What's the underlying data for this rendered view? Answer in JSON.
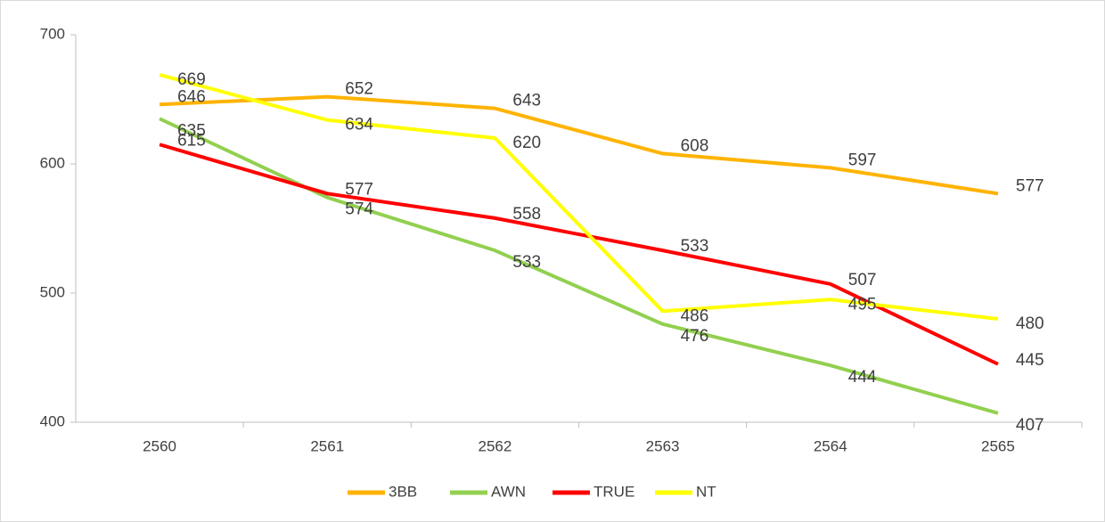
{
  "chart_data": {
    "type": "line",
    "categories": [
      "2560",
      "2561",
      "2562",
      "2563",
      "2564",
      "2565"
    ],
    "series": [
      {
        "name": "3BB",
        "color": "#FFB300",
        "values": [
          646,
          652,
          643,
          608,
          597,
          577
        ]
      },
      {
        "name": "AWN",
        "color": "#92D050",
        "values": [
          635,
          574,
          533,
          476,
          444,
          407
        ]
      },
      {
        "name": "TRUE",
        "color": "#FF0000",
        "values": [
          615,
          577,
          558,
          533,
          507,
          445
        ]
      },
      {
        "name": "NT",
        "color": "#FFFF00",
        "values": [
          669,
          634,
          620,
          486,
          495,
          480
        ]
      }
    ],
    "ylim": [
      400,
      700
    ],
    "yticks": [
      400,
      500,
      600,
      700
    ],
    "grid": false,
    "legend": "bottom"
  }
}
